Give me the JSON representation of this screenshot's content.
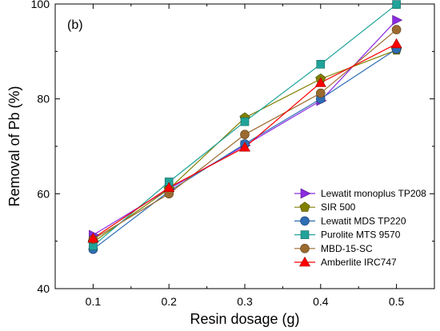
{
  "chart_data": {
    "type": "line",
    "panel_label": "(b)",
    "xlabel": "Resin dosage (g)",
    "ylabel": "Removal of Pb (%)",
    "xlim": [
      0.05,
      0.55
    ],
    "ylim": [
      40,
      100
    ],
    "xticks": [
      "0.1",
      "0.2",
      "0.3",
      "0.4",
      "0.5"
    ],
    "yticks": [
      "40",
      "60",
      "80",
      "100"
    ],
    "x": [
      0.1,
      0.2,
      0.3,
      0.4,
      0.5
    ],
    "legend_position": "bottom-right",
    "grid": false,
    "series": [
      {
        "name": "Lewatit monoplus TP208",
        "values": [
          51.3,
          61.0,
          70.2,
          79.6,
          96.6
        ],
        "color": "#8b2be2",
        "marker": "triangle-right"
      },
      {
        "name": "SIR 500",
        "values": [
          49.8,
          61.0,
          76.0,
          84.2,
          90.3
        ],
        "color": "#808000",
        "marker": "pentagon"
      },
      {
        "name": "Lewatit MDS TP220",
        "values": [
          48.3,
          60.5,
          70.5,
          80.0,
          90.5
        ],
        "color": "#2e6db4",
        "marker": "circle"
      },
      {
        "name": "Purolite MTS 9570",
        "values": [
          49.0,
          62.5,
          75.2,
          87.3,
          99.9
        ],
        "color": "#20a39a",
        "marker": "square"
      },
      {
        "name": "MBD-15-SC",
        "values": [
          50.4,
          60.0,
          72.5,
          81.2,
          94.6
        ],
        "color": "#9b6a2f",
        "marker": "circle"
      },
      {
        "name": "Amberlite IRC747",
        "values": [
          50.6,
          61.3,
          69.8,
          83.4,
          91.6
        ],
        "color": "#ff0000",
        "marker": "triangle-up"
      }
    ]
  }
}
